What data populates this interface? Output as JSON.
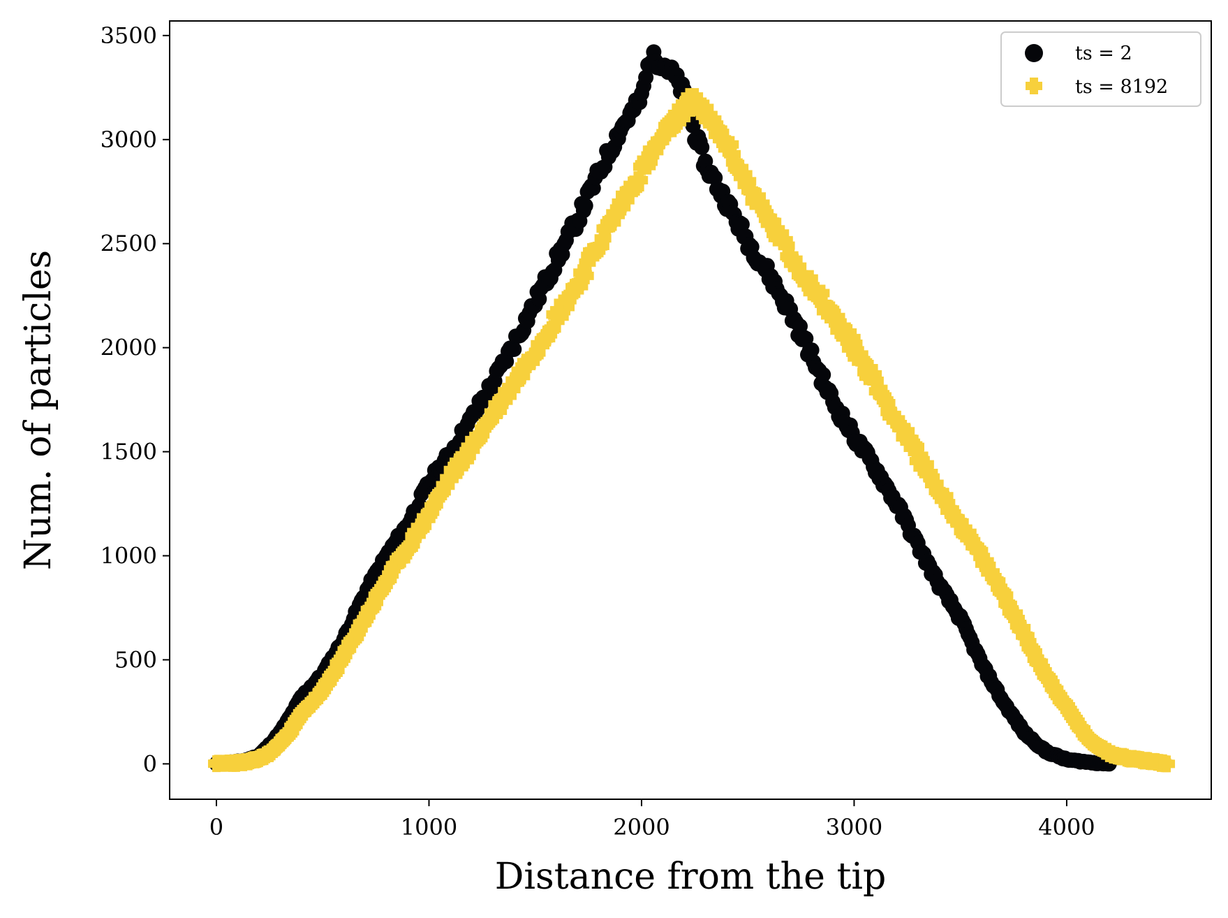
{
  "chart_data": {
    "type": "scatter",
    "title": "",
    "xlabel": "Distance from the tip",
    "ylabel": "Num. of particles",
    "xlim": [
      -220,
      4680
    ],
    "ylim": [
      -170,
      3570
    ],
    "xticks": [
      0,
      1000,
      2000,
      3000,
      4000
    ],
    "yticks": [
      0,
      500,
      1000,
      1500,
      2000,
      2500,
      3000,
      3500
    ],
    "xtick_labels": [
      "0",
      "1000",
      "2000",
      "3000",
      "4000"
    ],
    "ytick_labels": [
      "0",
      "500",
      "1000",
      "1500",
      "2000",
      "2500",
      "3000",
      "3500"
    ],
    "grid": false,
    "legend_position": "top-right",
    "series": [
      {
        "name": "ts = 2",
        "marker": "circle",
        "color": "#05060a",
        "values": [
          [
            0,
            0
          ],
          [
            50,
            5
          ],
          [
            100,
            10
          ],
          [
            150,
            20
          ],
          [
            200,
            40
          ],
          [
            250,
            90
          ],
          [
            300,
            150
          ],
          [
            350,
            230
          ],
          [
            400,
            320
          ],
          [
            500,
            430
          ],
          [
            600,
            600
          ],
          [
            700,
            820
          ],
          [
            800,
            1000
          ],
          [
            900,
            1150
          ],
          [
            1000,
            1350
          ],
          [
            1100,
            1490
          ],
          [
            1200,
            1660
          ],
          [
            1300,
            1830
          ],
          [
            1400,
            2020
          ],
          [
            1500,
            2220
          ],
          [
            1600,
            2420
          ],
          [
            1700,
            2620
          ],
          [
            1800,
            2840
          ],
          [
            1900,
            3050
          ],
          [
            2000,
            3200
          ],
          [
            2040,
            3395
          ],
          [
            2100,
            3370
          ],
          [
            2150,
            3310
          ],
          [
            2200,
            3220
          ],
          [
            2250,
            3030
          ],
          [
            2300,
            2880
          ],
          [
            2400,
            2700
          ],
          [
            2500,
            2510
          ],
          [
            2600,
            2350
          ],
          [
            2700,
            2170
          ],
          [
            2800,
            1960
          ],
          [
            2900,
            1740
          ],
          [
            3000,
            1570
          ],
          [
            3100,
            1420
          ],
          [
            3200,
            1250
          ],
          [
            3300,
            1050
          ],
          [
            3400,
            860
          ],
          [
            3500,
            700
          ],
          [
            3600,
            480
          ],
          [
            3700,
            300
          ],
          [
            3800,
            150
          ],
          [
            3900,
            60
          ],
          [
            4000,
            20
          ],
          [
            4100,
            8
          ],
          [
            4200,
            0
          ]
        ]
      },
      {
        "name": "ts = 8192",
        "marker": "plus",
        "color": "#f7d03c",
        "values": [
          [
            0,
            0
          ],
          [
            50,
            3
          ],
          [
            100,
            5
          ],
          [
            150,
            10
          ],
          [
            200,
            25
          ],
          [
            250,
            50
          ],
          [
            300,
            100
          ],
          [
            350,
            160
          ],
          [
            400,
            240
          ],
          [
            500,
            350
          ],
          [
            600,
            520
          ],
          [
            700,
            700
          ],
          [
            800,
            880
          ],
          [
            900,
            1040
          ],
          [
            1000,
            1200
          ],
          [
            1100,
            1380
          ],
          [
            1200,
            1520
          ],
          [
            1300,
            1680
          ],
          [
            1400,
            1830
          ],
          [
            1500,
            1990
          ],
          [
            1600,
            2150
          ],
          [
            1700,
            2310
          ],
          [
            1800,
            2500
          ],
          [
            1900,
            2680
          ],
          [
            2000,
            2850
          ],
          [
            2100,
            3010
          ],
          [
            2200,
            3150
          ],
          [
            2250,
            3200
          ],
          [
            2300,
            3120
          ],
          [
            2400,
            2980
          ],
          [
            2500,
            2780
          ],
          [
            2600,
            2610
          ],
          [
            2700,
            2440
          ],
          [
            2800,
            2300
          ],
          [
            2900,
            2150
          ],
          [
            3000,
            2000
          ],
          [
            3100,
            1830
          ],
          [
            3200,
            1650
          ],
          [
            3300,
            1480
          ],
          [
            3400,
            1310
          ],
          [
            3500,
            1150
          ],
          [
            3600,
            990
          ],
          [
            3700,
            820
          ],
          [
            3800,
            620
          ],
          [
            3900,
            430
          ],
          [
            4000,
            270
          ],
          [
            4100,
            120
          ],
          [
            4200,
            50
          ],
          [
            4300,
            25
          ],
          [
            4400,
            12
          ],
          [
            4470,
            0
          ]
        ]
      }
    ]
  }
}
